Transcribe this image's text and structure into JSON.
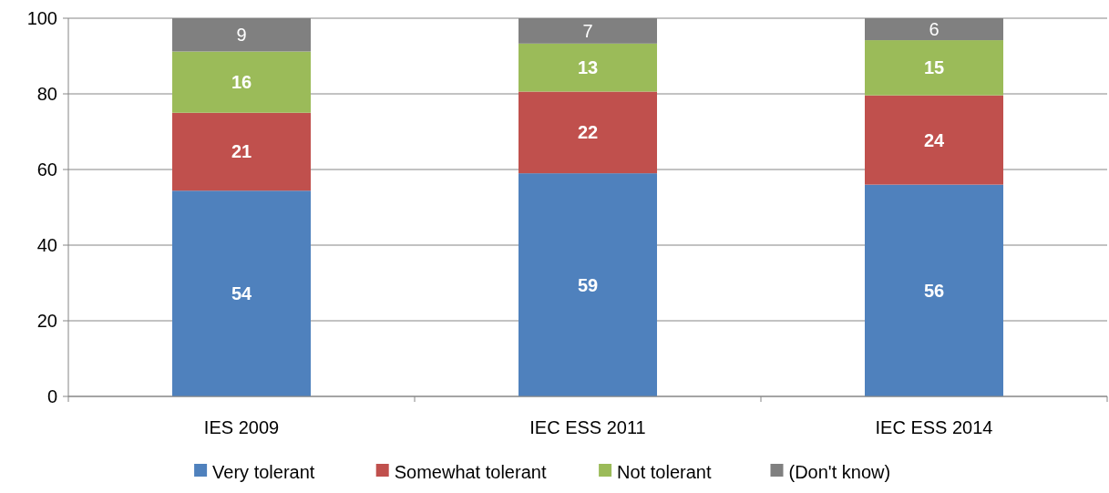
{
  "chart_data": {
    "type": "bar",
    "stacked": true,
    "categories": [
      "IES 2009",
      "IEC ESS 2011",
      "IEC ESS 2014"
    ],
    "series": [
      {
        "name": "Very tolerant",
        "color": "#4f81bd",
        "values": [
          54.4,
          59,
          56
        ],
        "value_labels": [
          "54",
          "59",
          "56"
        ]
      },
      {
        "name": "Somewhat tolerant",
        "color": "#c0504d",
        "values": [
          20.6,
          21.6,
          23.6
        ],
        "value_labels": [
          "21",
          "22",
          "24"
        ]
      },
      {
        "name": "Not tolerant",
        "color": "#9bbb59",
        "values": [
          16.2,
          12.7,
          14.6
        ],
        "value_labels": [
          "16",
          "13",
          "15"
        ]
      },
      {
        "name": "(Don't know)",
        "color": "#808080",
        "values": [
          8.8,
          6.7,
          5.8
        ],
        "value_labels": [
          "9",
          "7",
          "6"
        ]
      }
    ],
    "ylim": [
      0,
      100
    ],
    "yticks": [
      0,
      20,
      40,
      60,
      80,
      100
    ],
    "grid": "y",
    "legend": "bottom"
  }
}
